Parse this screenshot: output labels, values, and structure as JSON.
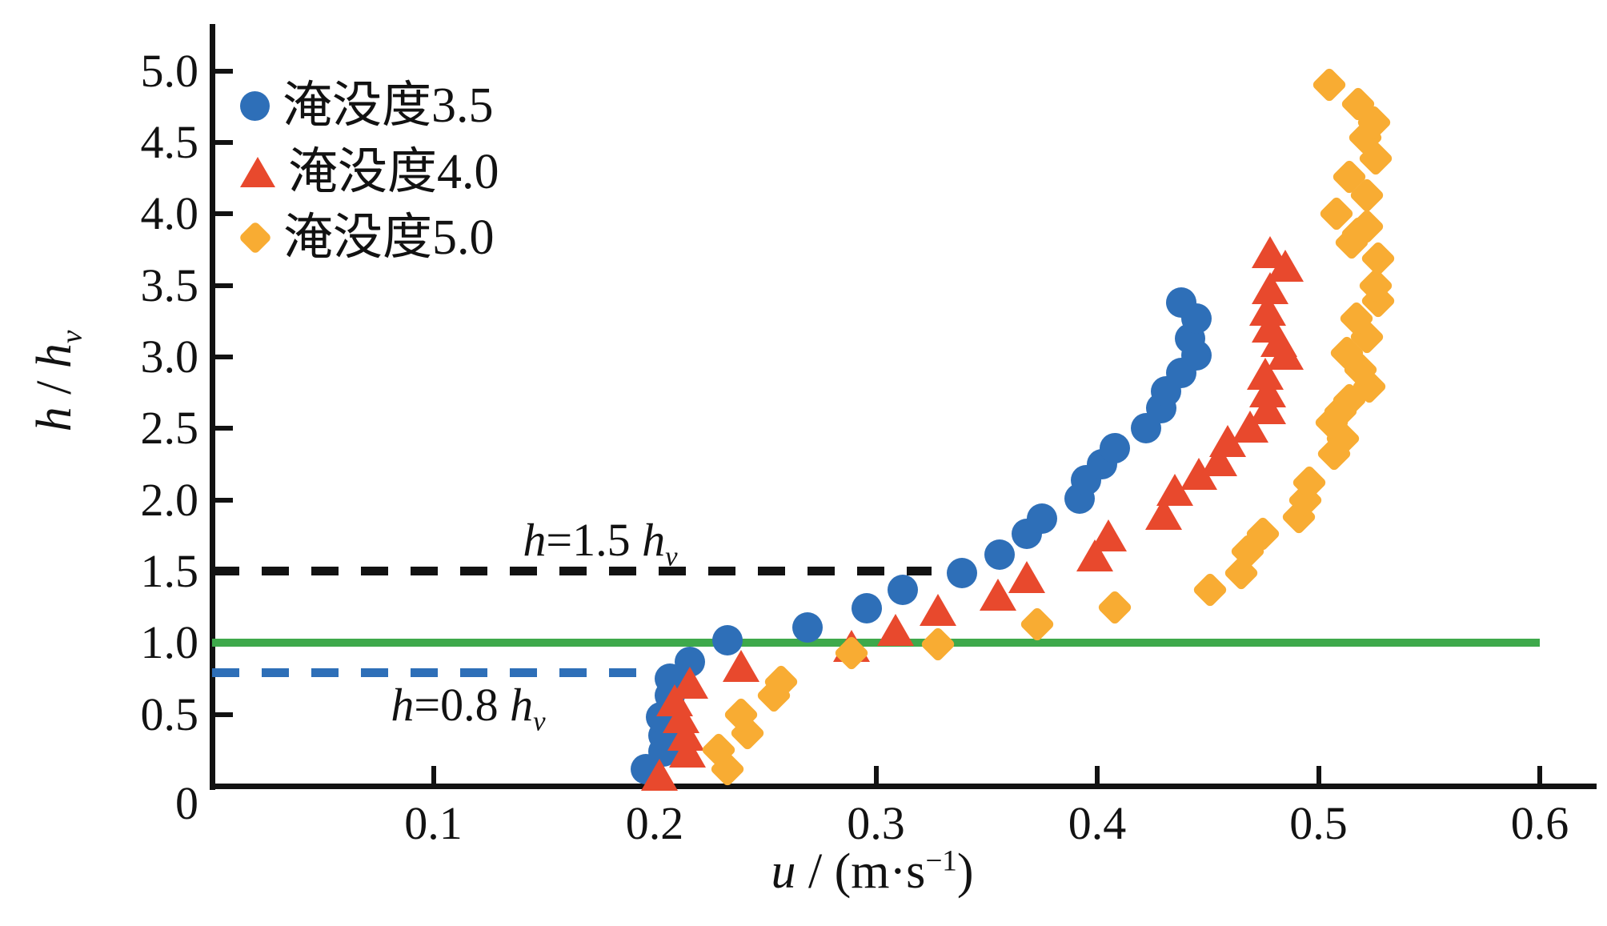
{
  "axes": {
    "x": {
      "title_parts": [
        "u",
        " / (m·s",
        "−1",
        ")"
      ],
      "ticks": [
        {
          "value": 0.1,
          "label": "0.1"
        },
        {
          "value": 0.2,
          "label": "0.2"
        },
        {
          "value": 0.3,
          "label": "0.3"
        },
        {
          "value": 0.4,
          "label": "0.4"
        },
        {
          "value": 0.5,
          "label": "0.5"
        },
        {
          "value": 0.6,
          "label": "0.6"
        }
      ]
    },
    "y": {
      "title_parts": [
        "h",
        " / ",
        "h",
        "v"
      ],
      "ticks": [
        {
          "value": 5.0,
          "label": "5.0"
        },
        {
          "value": 4.5,
          "label": "4.5"
        },
        {
          "value": 4.0,
          "label": "4.0"
        },
        {
          "value": 3.5,
          "label": "3.5"
        },
        {
          "value": 3.0,
          "label": "3.0"
        },
        {
          "value": 2.5,
          "label": "2.5"
        },
        {
          "value": 2.0,
          "label": "2.0"
        },
        {
          "value": 1.5,
          "label": "1.5"
        },
        {
          "value": 1.0,
          "label": "1.0"
        },
        {
          "value": 0.5,
          "label": "0.5"
        },
        {
          "value": 0,
          "label": "0"
        }
      ]
    }
  },
  "reference_lines": [
    {
      "id": "h-equals-1.5hv",
      "type": "dashed",
      "color": "#121212",
      "h": 1.5,
      "u_start": 0,
      "u_end": 0.325,
      "label_parts": [
        "h",
        "=1.5 ",
        "h",
        "v"
      ]
    },
    {
      "id": "h-equals-1.0hv",
      "type": "solid",
      "color": "#3EA94B",
      "h": 1.0,
      "u_start": 0,
      "u_end": 0.6
    },
    {
      "id": "h-equals-0.8hv",
      "type": "dashed",
      "color": "#2E6FB8",
      "h": 0.79,
      "u_start": 0,
      "u_end": 0.193,
      "label_parts": [
        "h",
        "=0.8 ",
        "h",
        "v"
      ]
    }
  ],
  "chart_data": {
    "type": "scatter",
    "xlabel": "u / (m·s−1)",
    "ylabel": "h / hv",
    "xlim": [
      0,
      0.63
    ],
    "ylim": [
      0,
      5.3
    ],
    "grid": false,
    "legend_position": "upper-left",
    "series": [
      {
        "name": "淹没度3.5",
        "marker": "circle",
        "color": "#2E6FB8",
        "points": [
          [
            0.196,
            0.12
          ],
          [
            0.204,
            0.24
          ],
          [
            0.204,
            0.35
          ],
          [
            0.203,
            0.48
          ],
          [
            0.207,
            0.63
          ],
          [
            0.207,
            0.75
          ],
          [
            0.216,
            0.87
          ],
          [
            0.233,
            1.02
          ],
          [
            0.269,
            1.11
          ],
          [
            0.296,
            1.24
          ],
          [
            0.312,
            1.37
          ],
          [
            0.339,
            1.49
          ],
          [
            0.356,
            1.62
          ],
          [
            0.368,
            1.76
          ],
          [
            0.375,
            1.87
          ],
          [
            0.392,
            2.01
          ],
          [
            0.395,
            2.14
          ],
          [
            0.402,
            2.25
          ],
          [
            0.408,
            2.36
          ],
          [
            0.422,
            2.5
          ],
          [
            0.429,
            2.64
          ],
          [
            0.431,
            2.76
          ],
          [
            0.438,
            2.89
          ],
          [
            0.445,
            3.01
          ],
          [
            0.442,
            3.13
          ],
          [
            0.445,
            3.27
          ],
          [
            0.438,
            3.38
          ]
        ]
      },
      {
        "name": "淹没度4.0",
        "marker": "triangle",
        "color": "#E8492D",
        "points": [
          [
            0.202,
            0.08
          ],
          [
            0.215,
            0.24
          ],
          [
            0.214,
            0.36
          ],
          [
            0.212,
            0.48
          ],
          [
            0.209,
            0.6
          ],
          [
            0.216,
            0.72
          ],
          [
            0.239,
            0.84
          ],
          [
            0.289,
            0.98
          ],
          [
            0.309,
            1.09
          ],
          [
            0.328,
            1.23
          ],
          [
            0.355,
            1.34
          ],
          [
            0.368,
            1.46
          ],
          [
            0.399,
            1.61
          ],
          [
            0.405,
            1.75
          ],
          [
            0.43,
            1.9
          ],
          [
            0.435,
            2.07
          ],
          [
            0.446,
            2.18
          ],
          [
            0.455,
            2.28
          ],
          [
            0.459,
            2.41
          ],
          [
            0.469,
            2.51
          ],
          [
            0.477,
            2.64
          ],
          [
            0.477,
            2.76
          ],
          [
            0.476,
            2.88
          ],
          [
            0.485,
            3.02
          ],
          [
            0.482,
            3.11
          ],
          [
            0.478,
            3.21
          ],
          [
            0.477,
            3.33
          ],
          [
            0.478,
            3.48
          ],
          [
            0.485,
            3.64
          ],
          [
            0.478,
            3.73
          ]
        ]
      },
      {
        "name": "淹没度5.0",
        "marker": "diamond",
        "color": "#F8AC33",
        "points": [
          [
            0.233,
            0.12
          ],
          [
            0.229,
            0.25
          ],
          [
            0.242,
            0.37
          ],
          [
            0.239,
            0.5
          ],
          [
            0.254,
            0.63
          ],
          [
            0.257,
            0.73
          ],
          [
            0.289,
            0.93
          ],
          [
            0.328,
            0.99
          ],
          [
            0.373,
            1.13
          ],
          [
            0.408,
            1.25
          ],
          [
            0.451,
            1.37
          ],
          [
            0.465,
            1.49
          ],
          [
            0.468,
            1.64
          ],
          [
            0.475,
            1.76
          ],
          [
            0.491,
            1.88
          ],
          [
            0.494,
            2.0
          ],
          [
            0.496,
            2.12
          ],
          [
            0.507,
            2.32
          ],
          [
            0.511,
            2.43
          ],
          [
            0.506,
            2.54
          ],
          [
            0.51,
            2.62
          ],
          [
            0.514,
            2.7
          ],
          [
            0.523,
            2.79
          ],
          [
            0.519,
            2.91
          ],
          [
            0.513,
            3.03
          ],
          [
            0.522,
            3.14
          ],
          [
            0.517,
            3.27
          ],
          [
            0.527,
            3.39
          ],
          [
            0.526,
            3.5
          ],
          [
            0.527,
            3.69
          ],
          [
            0.515,
            3.8
          ],
          [
            0.518,
            3.86
          ],
          [
            0.522,
            3.91
          ],
          [
            0.508,
            4.0
          ],
          [
            0.522,
            4.13
          ],
          [
            0.514,
            4.26
          ],
          [
            0.526,
            4.39
          ],
          [
            0.521,
            4.53
          ],
          [
            0.525,
            4.64
          ],
          [
            0.518,
            4.77
          ],
          [
            0.505,
            4.9
          ]
        ]
      }
    ]
  }
}
